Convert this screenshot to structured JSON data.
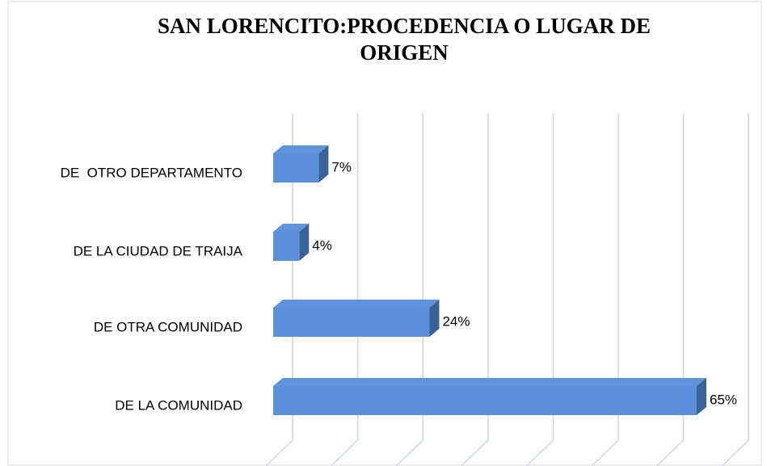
{
  "chart_data": {
    "type": "bar3d_horizontal",
    "title": "SAN LORENCITO:PROCEDENCIA O LUGAR DE ORIGEN",
    "categories": [
      "DE  OTRO DEPARTAMENTO",
      "DE LA CIUDAD DE TRAIJA",
      "DE OTRA COMUNIDAD",
      "DE LA COMUNIDAD"
    ],
    "values": [
      7,
      4,
      24,
      65
    ],
    "value_labels": [
      "7%",
      "4%",
      "24%",
      "65%"
    ],
    "color": "#5b8fd8",
    "xlim": [
      0,
      70
    ],
    "xticks": [
      0,
      10,
      20,
      30,
      40,
      50,
      60,
      70
    ],
    "grid": true
  }
}
